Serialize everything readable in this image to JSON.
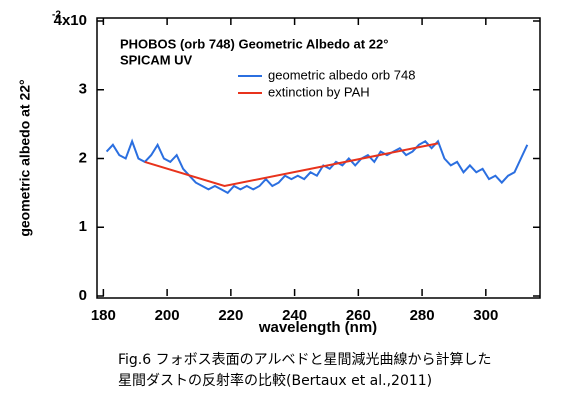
{
  "chart_data": {
    "type": "line",
    "title": "PHOBOS (orb 748) Geometric Albedo at 22°",
    "subtitle": "SPICAM UV",
    "xlabel": "wavelength (nm)",
    "ylabel": "geometric albedo at 22°",
    "xlim": [
      178,
      317
    ],
    "ylim": [
      0,
      4
    ],
    "xticks": [
      180,
      200,
      220,
      240,
      260,
      280,
      300
    ],
    "yticks": [
      0,
      1,
      2,
      3,
      {
        "value": 4,
        "label": "4x10"
      }
    ],
    "y_exponent": "-2",
    "series": [
      {
        "name": "geometric albedo orb 748",
        "color": "#2b6fe0",
        "x": [
          181,
          183,
          185,
          187,
          189,
          191,
          193,
          195,
          197,
          199,
          201,
          203,
          205,
          207,
          209,
          211,
          213,
          215,
          217,
          219,
          221,
          223,
          225,
          227,
          229,
          231,
          233,
          235,
          237,
          239,
          241,
          243,
          245,
          247,
          249,
          251,
          253,
          255,
          257,
          259,
          261,
          263,
          265,
          267,
          269,
          271,
          273,
          275,
          277,
          279,
          281,
          283,
          285,
          287,
          289,
          291,
          293,
          295,
          297,
          299,
          301,
          303,
          305,
          307,
          309,
          311,
          313
        ],
        "values": [
          2.1,
          2.2,
          2.05,
          2.0,
          2.25,
          2.0,
          1.95,
          2.05,
          2.2,
          2.0,
          1.95,
          2.05,
          1.85,
          1.75,
          1.65,
          1.6,
          1.55,
          1.6,
          1.55,
          1.5,
          1.6,
          1.55,
          1.6,
          1.55,
          1.6,
          1.7,
          1.6,
          1.65,
          1.75,
          1.7,
          1.75,
          1.7,
          1.8,
          1.75,
          1.9,
          1.85,
          1.95,
          1.9,
          2.0,
          1.9,
          2.0,
          2.05,
          1.95,
          2.1,
          2.05,
          2.1,
          2.15,
          2.05,
          2.1,
          2.2,
          2.25,
          2.15,
          2.25,
          2.0,
          1.9,
          1.95,
          1.8,
          1.9,
          1.8,
          1.85,
          1.7,
          1.75,
          1.65,
          1.75,
          1.8,
          2.0,
          2.2
        ]
      },
      {
        "name": "extinction by PAH",
        "color": "#e8331c",
        "x": [
          193,
          218,
          285
        ],
        "values": [
          1.95,
          1.6,
          2.22
        ]
      }
    ]
  },
  "caption": [
    "Fig.6 フォボス表面のアルベドと星間減光曲線から計算した",
    "星間ダストの反射率の比較(Bertaux et al.,2011)"
  ]
}
